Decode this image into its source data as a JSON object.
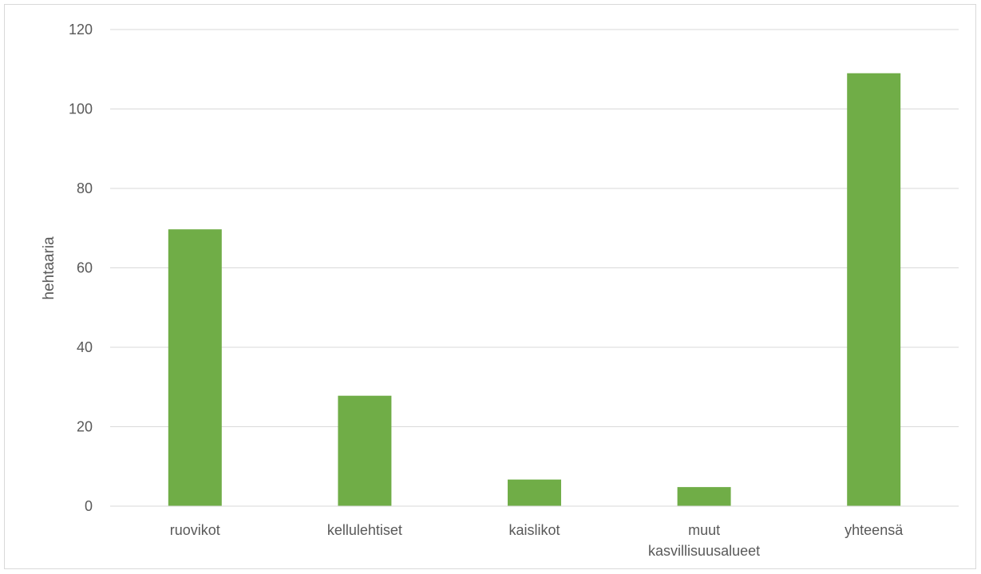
{
  "chart_data": {
    "type": "bar",
    "title": "",
    "xlabel": "",
    "ylabel": "hehtaaria",
    "categories": [
      [
        "ruovikot"
      ],
      [
        "kellulehtiset"
      ],
      [
        "kaislikot"
      ],
      [
        "muut",
        "kasvillisuusalueet"
      ],
      [
        "yhteensä"
      ]
    ],
    "values": [
      69.7,
      27.8,
      6.7,
      4.8,
      109.0
    ],
    "ylim": [
      0,
      120
    ],
    "yticks": [
      0,
      20,
      40,
      60,
      80,
      100,
      120
    ],
    "grid": true,
    "legend": "none",
    "bar_color": "#70ad47"
  }
}
